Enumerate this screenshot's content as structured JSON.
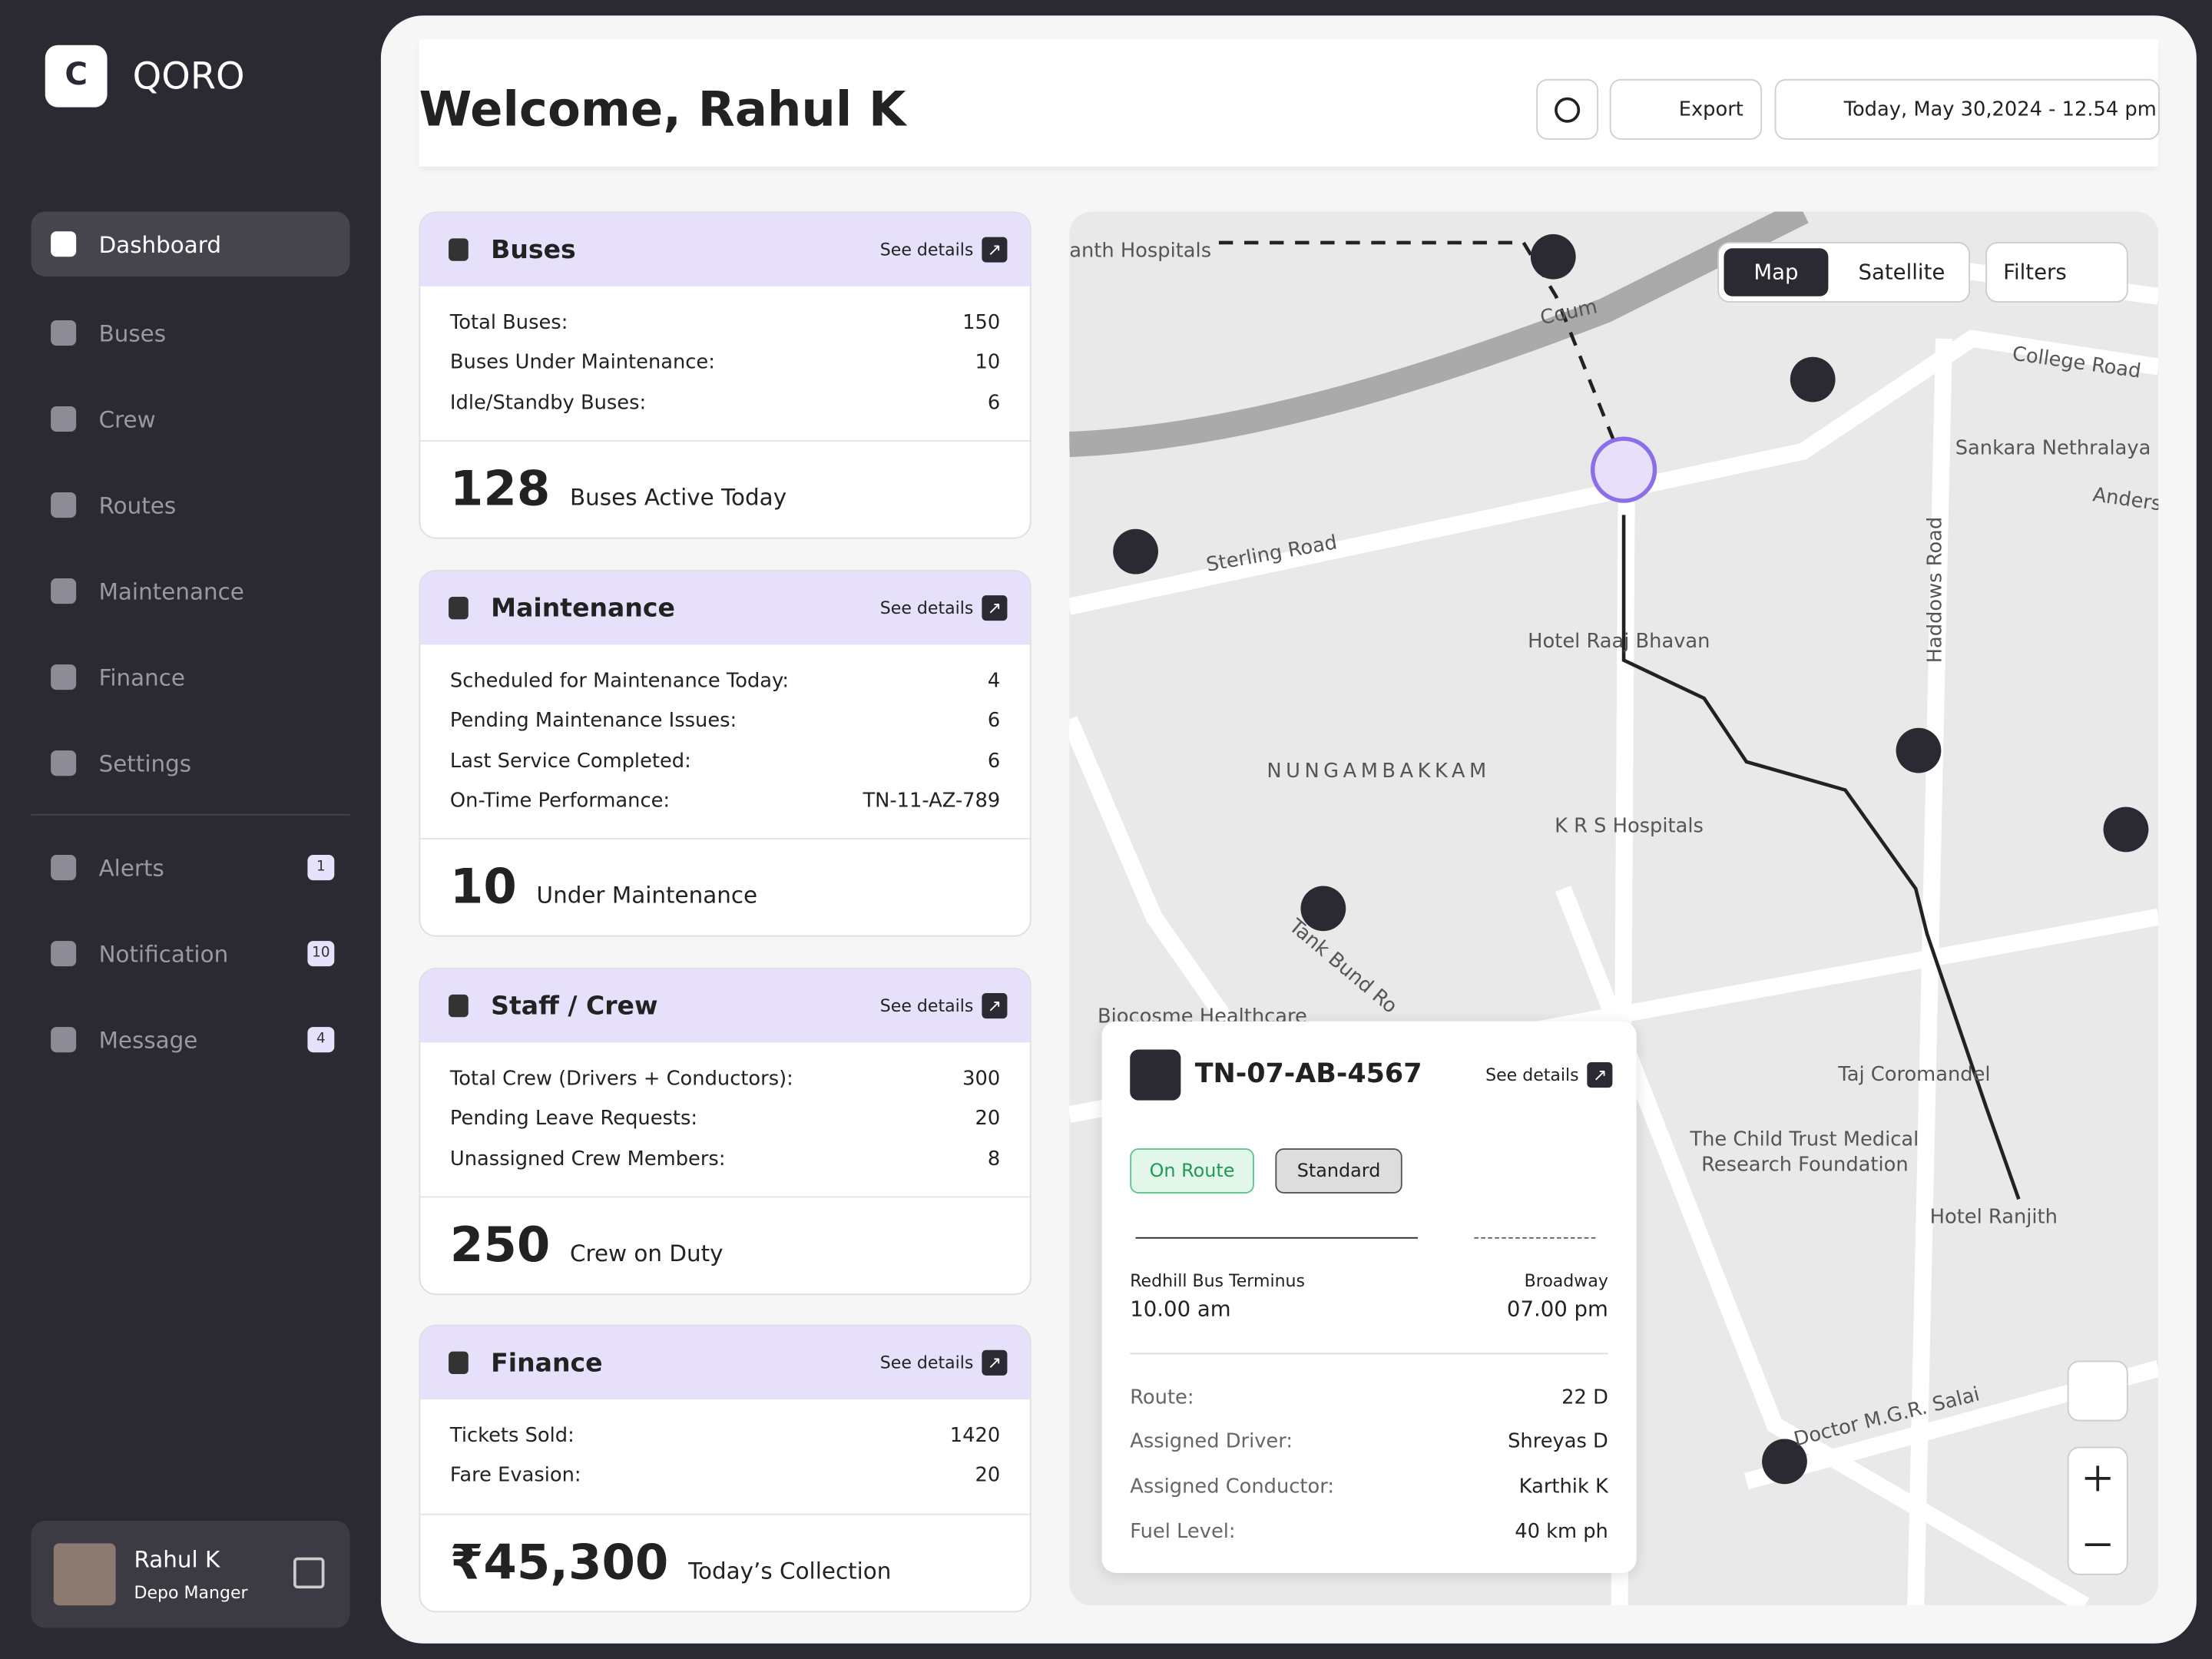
{
  "brand": "QORO",
  "nav": [
    {
      "label": "Dashboard"
    },
    {
      "label": "Buses"
    },
    {
      "label": "Crew"
    },
    {
      "label": "Routes"
    },
    {
      "label": "Maintenance"
    },
    {
      "label": "Finance"
    },
    {
      "label": "Settings"
    },
    {
      "label": "Alerts",
      "badge": "1"
    },
    {
      "label": "Notification",
      "badge": "10"
    },
    {
      "label": "Message",
      "badge": "4"
    }
  ],
  "user": {
    "name": "Rahul K",
    "role": "Depo Manger"
  },
  "header": {
    "title": "Welcome, Rahul K",
    "export": "Export",
    "date": "Today, May 30,2024 - 12.54 pm"
  },
  "cards": [
    {
      "title": "Buses",
      "link": "See details",
      "rows": [
        [
          "Total Buses:",
          "150"
        ],
        [
          "Buses Under Maintenance:",
          "10"
        ],
        [
          "Idle/Standby Buses:",
          "6"
        ]
      ],
      "big": "128",
      "big_label": "Buses Active Today"
    },
    {
      "title": "Maintenance",
      "link": "See details",
      "rows": [
        [
          "Scheduled for Maintenance Today:",
          "4"
        ],
        [
          "Pending Maintenance Issues:",
          "6"
        ],
        [
          "Last Service Completed:",
          "6"
        ],
        [
          "On-Time Performance:",
          "TN-11-AZ-789"
        ]
      ],
      "big": "10",
      "big_label": "Under Maintenance"
    },
    {
      "title": "Staff / Crew",
      "link": "See details",
      "rows": [
        [
          "Total Crew (Drivers + Conductors):",
          "300"
        ],
        [
          "Pending Leave Requests:",
          "20"
        ],
        [
          "Unassigned Crew Members:",
          "8"
        ]
      ],
      "big": "250",
      "big_label": "Crew on Duty"
    },
    {
      "title": "Finance",
      "link": "See details",
      "rows": [
        [
          "Tickets Sold:",
          "1420"
        ],
        [
          "Fare Evasion:",
          "20"
        ]
      ],
      "big": "₹45,300",
      "big_label": "Today’s Collection"
    }
  ],
  "map": {
    "tabs": [
      "Map",
      "Satellite"
    ],
    "filters": "Filters",
    "labels": [
      "anth Hospitals",
      "Coum",
      "College Road",
      "Sankara Nethralaya",
      "Anders",
      "Sterling Road",
      "Hotel Raaj Bhavan",
      "Haddows Road",
      "NUNGAMBAKKAM",
      "K R S Hospitals",
      "Tank Bund Ro",
      "Biocosme Healthcare",
      "Taj Coromandel",
      "The Child Trust Medical",
      "Research Foundation",
      "Hotel Ranjith",
      "Doctor M.G.R. Salai"
    ],
    "popup": {
      "bus": "TN-07-AB-4567",
      "link": "See details",
      "status": "On Route",
      "category": "Standard",
      "from": "Redhill Bus Terminus",
      "from_time": "10.00 am",
      "to": "Broadway",
      "to_time": "07.00 pm",
      "rows": [
        [
          "Route:",
          "22 D"
        ],
        [
          "Assigned Driver:",
          "Shreyas D"
        ],
        [
          "Assigned Conductor:",
          "Karthik K"
        ],
        [
          "Fuel Level:",
          "40 km ph"
        ]
      ]
    }
  }
}
